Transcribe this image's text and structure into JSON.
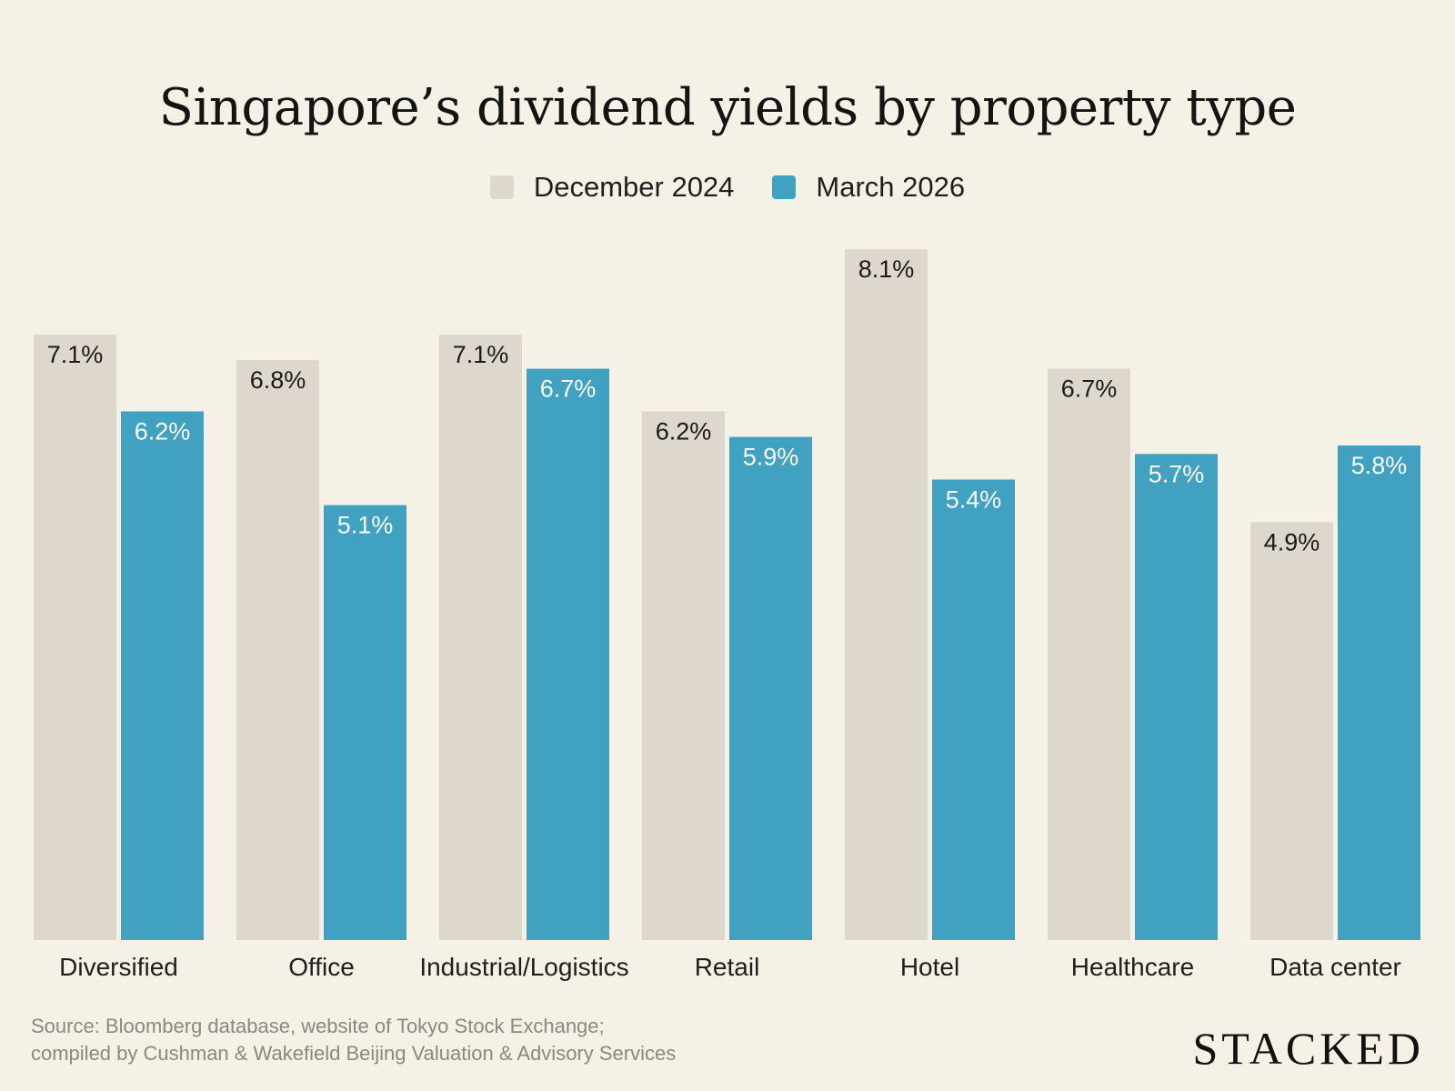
{
  "title": "Singapore’s dividend yields by property type",
  "legend": [
    {
      "label": "December 2024",
      "color": "#ddd7cd"
    },
    {
      "label": "March 2026",
      "color": "#40a1c1"
    }
  ],
  "footer": {
    "source_line1": "Source: Bloomberg database, website of Tokyo Stock Exchange;",
    "source_line2": "compiled by Cushman & Wakefield Beijing Valuation & Advisory Services",
    "brand": "STACKED"
  },
  "chart_data": {
    "type": "bar",
    "categories": [
      "Diversified",
      "Office",
      "Industrial/Logistics",
      "Retail",
      "Hotel",
      "Healthcare",
      "Data center"
    ],
    "series": [
      {
        "name": "December 2024",
        "values": [
          7.1,
          6.8,
          7.1,
          6.2,
          8.1,
          6.7,
          4.9
        ],
        "labels": [
          "7.1%",
          "6.8%",
          "7.1%",
          "6.2%",
          "8.1%",
          "6.7%",
          "4.9%"
        ],
        "color": "#ddd7cd",
        "label_color": "#1a1a1a"
      },
      {
        "name": "March 2026",
        "values": [
          6.2,
          5.1,
          6.7,
          5.9,
          5.4,
          5.7,
          5.8
        ],
        "labels": [
          "6.2%",
          "5.1%",
          "6.7%",
          "5.9%",
          "5.4%",
          "5.7%",
          "5.8%"
        ],
        "color": "#40a1c1",
        "label_color": "#ffffff"
      }
    ],
    "title": "Singapore’s dividend yields by property type",
    "legend_position": "top-center",
    "grid": false
  }
}
